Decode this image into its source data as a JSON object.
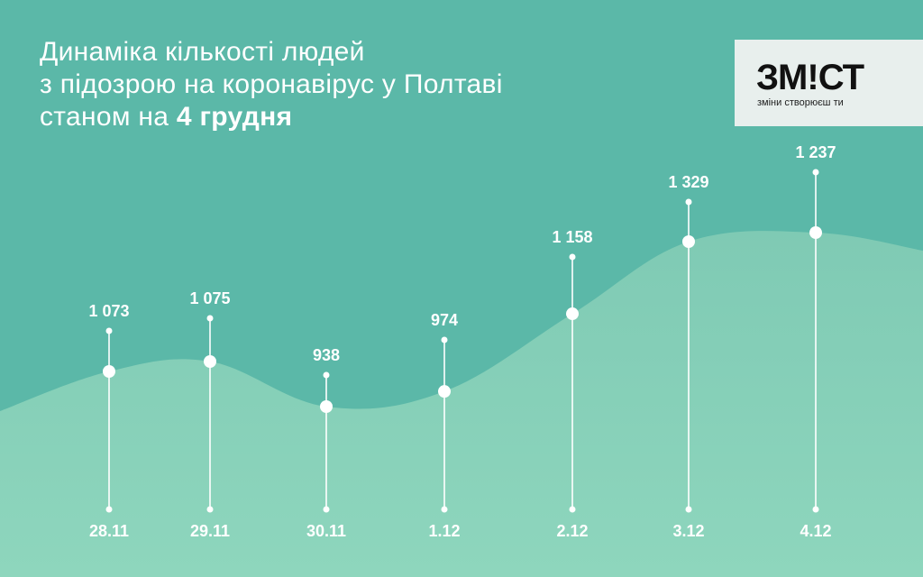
{
  "title": {
    "line1": "Динаміка кількості людей",
    "line2": "з підозрою на коронавірус у Полтаві",
    "line3_prefix": "станом на ",
    "line3_bold": "4 грудня"
  },
  "logo": {
    "wordmark": "ЗМ!СТ",
    "tagline": "зміни створюєш ти"
  },
  "colors": {
    "background": "#5bb8a8",
    "area_top": "#7fcab4",
    "area_bottom": "#8ed6bd",
    "marker": "#ffffff"
  },
  "chart_data": {
    "type": "area",
    "categories": [
      "28.11",
      "29.11",
      "30.11",
      "1.12",
      "2.12",
      "3.12",
      "4.12"
    ],
    "series": [
      {
        "values": [
          1073,
          1075,
          938,
          974,
          1158,
          1329,
          1237
        ],
        "value_labels": [
          "1 073",
          "1 075",
          "938",
          "974",
          "1 158",
          "1 329",
          "1 237"
        ]
      }
    ],
    "title": "Динаміка кількості людей з підозрою на коронавірус у Полтаві станом на 4 грудня",
    "xlabel": "",
    "ylabel": "",
    "grid": false,
    "legend": "none"
  }
}
